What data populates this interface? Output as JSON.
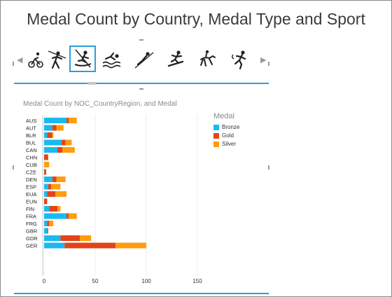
{
  "title": "Medal Count by Country, Medal Type and Sport",
  "tiles": [
    {
      "icon": "cycling-icon"
    },
    {
      "icon": "javelin-icon"
    },
    {
      "icon": "canoeing-icon",
      "selected": true
    },
    {
      "icon": "swimming-icon"
    },
    {
      "icon": "ski-jumping-icon"
    },
    {
      "icon": "snowboarding-icon"
    },
    {
      "icon": "equestrian-icon"
    },
    {
      "icon": "running-icon"
    }
  ],
  "chart_title": "Medal Count by NOC_CountryRegion, and Medal",
  "legend": {
    "title": "Medal",
    "items": [
      {
        "label": "Bronze",
        "color": "#1ab9f0"
      },
      {
        "label": "Gold",
        "color": "#e0441a"
      },
      {
        "label": "Silver",
        "color": "#ff9c0f"
      }
    ]
  },
  "chart_data": {
    "type": "bar",
    "orientation": "horizontal",
    "stacked": true,
    "categories": [
      "AUS",
      "AUT",
      "BLR",
      "BUL",
      "CAN",
      "CHN",
      "CUB",
      "CZE",
      "DEN",
      "ESP",
      "EUA",
      "EUN",
      "FIN",
      "FRA",
      "FRG",
      "GBR",
      "GDR",
      "GER"
    ],
    "series": [
      {
        "name": "Bronze",
        "color": "#1ab9f0",
        "values": [
          22,
          8,
          3,
          17,
          13,
          0,
          0,
          0,
          8,
          4,
          3,
          0,
          5,
          22,
          3,
          3,
          16,
          20
        ]
      },
      {
        "name": "Gold",
        "color": "#e0441a",
        "values": [
          2,
          4,
          5,
          4,
          5,
          4,
          0,
          2,
          4,
          3,
          8,
          3,
          8,
          2,
          2,
          1,
          19,
          50
        ]
      },
      {
        "name": "Silver",
        "color": "#ff9c0f",
        "values": [
          8,
          7,
          1,
          6,
          12,
          0,
          5,
          0,
          9,
          9,
          11,
          0,
          3,
          8,
          4,
          0,
          11,
          30
        ]
      }
    ],
    "xticks": [
      0,
      50,
      100,
      150
    ],
    "xlim": [
      0,
      150
    ]
  }
}
